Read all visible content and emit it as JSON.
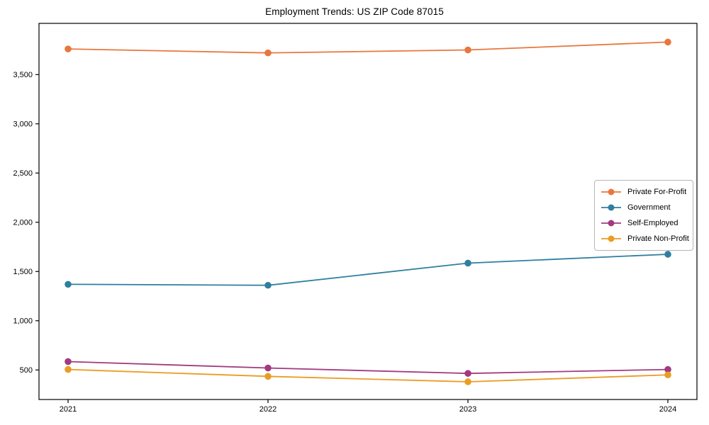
{
  "chart_data": {
    "type": "line",
    "title": "Employment Trends: US ZIP Code 87015",
    "xlabel": "",
    "ylabel": "",
    "x": [
      "2021",
      "2022",
      "2023",
      "2024"
    ],
    "series": [
      {
        "name": "Private For-Profit",
        "color": "#e8773d",
        "values": [
          3760,
          3720,
          3750,
          3830
        ]
      },
      {
        "name": "Government",
        "color": "#2f7f9f",
        "values": [
          1370,
          1360,
          1585,
          1675
        ]
      },
      {
        "name": "Self-Employed",
        "color": "#a23a7f",
        "values": [
          585,
          520,
          465,
          505
        ]
      },
      {
        "name": "Private Non-Profit",
        "color": "#eb9c23",
        "values": [
          505,
          435,
          380,
          450
        ]
      }
    ],
    "yticks": [
      500,
      1000,
      1500,
      2000,
      2500,
      3000,
      3500
    ],
    "ytick_labels": [
      "500",
      "1,000",
      "1,500",
      "2,000",
      "2,500",
      "3,000",
      "3,500"
    ],
    "ylim": [
      200,
      4020
    ],
    "grid": false,
    "legend_position": "center-right",
    "frame_color": "#000000"
  }
}
